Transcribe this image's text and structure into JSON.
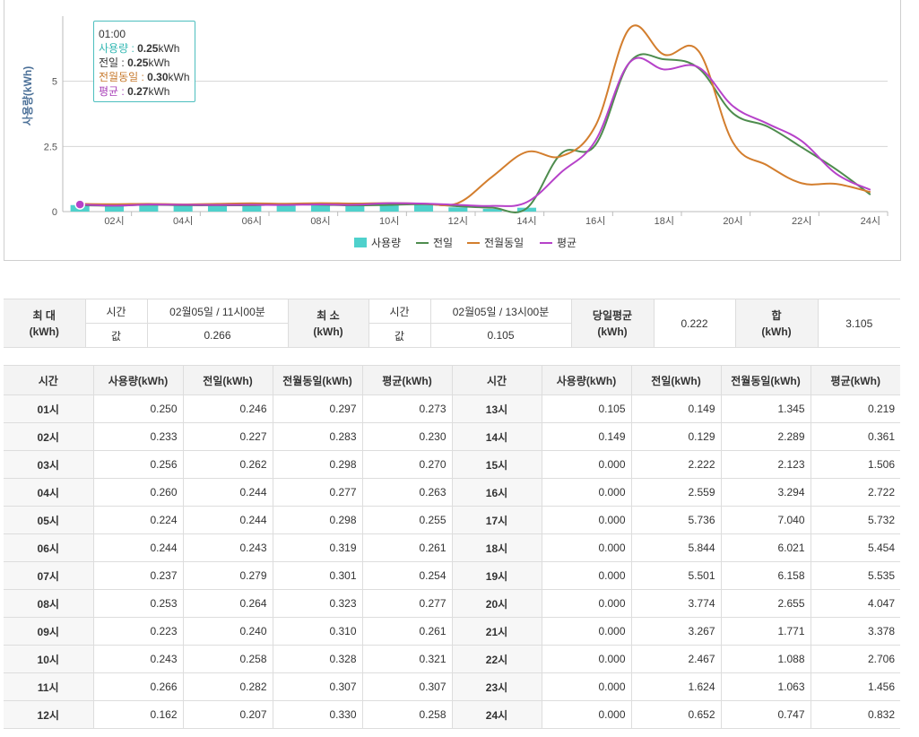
{
  "chart_data": {
    "type": "line",
    "ylabel": "사용량(kWh)",
    "ylim": [
      0,
      7.5
    ],
    "yticks": [
      "0",
      "2.5",
      "5"
    ],
    "ytick_values": [
      0,
      2.5,
      5
    ],
    "x": [
      1,
      2,
      3,
      4,
      5,
      6,
      7,
      8,
      9,
      10,
      11,
      12,
      13,
      14,
      15,
      16,
      17,
      18,
      19,
      20,
      21,
      22,
      23,
      24
    ],
    "xtick_labels": [
      "02시",
      "04시",
      "06시",
      "08시",
      "10시",
      "12시",
      "14시",
      "16시",
      "18시",
      "20시",
      "22시",
      "24시"
    ],
    "xtick_values": [
      2,
      4,
      6,
      8,
      10,
      12,
      14,
      16,
      18,
      20,
      22,
      24
    ],
    "series": [
      {
        "name": "사용량",
        "type": "bar",
        "color": "#4fd1cc",
        "values": [
          0.25,
          0.233,
          0.256,
          0.26,
          0.224,
          0.244,
          0.237,
          0.253,
          0.223,
          0.243,
          0.266,
          0.162,
          0.105,
          0.149,
          0,
          0,
          0,
          0,
          0,
          0,
          0,
          0,
          0,
          0
        ]
      },
      {
        "name": "전일",
        "type": "line",
        "color": "#4e8c4e",
        "values": [
          0.246,
          0.227,
          0.262,
          0.244,
          0.244,
          0.243,
          0.279,
          0.264,
          0.24,
          0.258,
          0.282,
          0.207,
          0.149,
          0.129,
          2.222,
          2.559,
          5.736,
          5.844,
          5.501,
          3.774,
          3.267,
          2.467,
          1.624,
          0.652
        ]
      },
      {
        "name": "전월동일",
        "type": "line",
        "color": "#d37e2e",
        "values": [
          0.297,
          0.283,
          0.298,
          0.277,
          0.298,
          0.319,
          0.301,
          0.323,
          0.31,
          0.328,
          0.307,
          0.33,
          1.345,
          2.289,
          2.123,
          3.294,
          7.04,
          6.021,
          6.158,
          2.655,
          1.771,
          1.088,
          1.063,
          0.747
        ]
      },
      {
        "name": "평균",
        "type": "line",
        "color": "#b642c9",
        "values": [
          0.273,
          0.23,
          0.27,
          0.263,
          0.255,
          0.261,
          0.254,
          0.277,
          0.261,
          0.321,
          0.307,
          0.258,
          0.219,
          0.361,
          1.506,
          2.722,
          5.732,
          5.454,
          5.535,
          4.047,
          3.378,
          2.706,
          1.456,
          0.832
        ]
      }
    ],
    "legend": "bottom",
    "grid": true
  },
  "tooltip": {
    "time": "01:00",
    "rows": [
      {
        "label": "사용량 : ",
        "value": "0.25",
        "unit": "kWh",
        "color": "#35b8b3"
      },
      {
        "label": "전일 : ",
        "value": "0.25",
        "unit": "kWh",
        "color": "#333333"
      },
      {
        "label": "전월동일 : ",
        "value": "0.30",
        "unit": "kWh",
        "color": "#c77a2e"
      },
      {
        "label": "평균 : ",
        "value": "0.27",
        "unit": "kWh",
        "color": "#a83fb8"
      }
    ]
  },
  "summary": {
    "max_label": "최 대\n(kWh)",
    "min_label": "최 소\n(kWh)",
    "avg_label": "당일평균\n(kWh)",
    "sum_label": "합\n(kWh)",
    "time_label": "시간",
    "value_label": "값",
    "max_time": "02월05일 / 11시00분",
    "max_value": "0.266",
    "min_time": "02월05일 / 13시00분",
    "min_value": "0.105",
    "avg_value": "0.222",
    "sum_value": "3.105"
  },
  "detail": {
    "headers": [
      "시간",
      "사용량(kWh)",
      "전일(kWh)",
      "전월동일(kWh)",
      "평균(kWh)",
      "시간",
      "사용량(kWh)",
      "전일(kWh)",
      "전월동일(kWh)",
      "평균(kWh)"
    ],
    "rows": [
      [
        "01시",
        "0.250",
        "0.246",
        "0.297",
        "0.273",
        "13시",
        "0.105",
        "0.149",
        "1.345",
        "0.219"
      ],
      [
        "02시",
        "0.233",
        "0.227",
        "0.283",
        "0.230",
        "14시",
        "0.149",
        "0.129",
        "2.289",
        "0.361"
      ],
      [
        "03시",
        "0.256",
        "0.262",
        "0.298",
        "0.270",
        "15시",
        "0.000",
        "2.222",
        "2.123",
        "1.506"
      ],
      [
        "04시",
        "0.260",
        "0.244",
        "0.277",
        "0.263",
        "16시",
        "0.000",
        "2.559",
        "3.294",
        "2.722"
      ],
      [
        "05시",
        "0.224",
        "0.244",
        "0.298",
        "0.255",
        "17시",
        "0.000",
        "5.736",
        "7.040",
        "5.732"
      ],
      [
        "06시",
        "0.244",
        "0.243",
        "0.319",
        "0.261",
        "18시",
        "0.000",
        "5.844",
        "6.021",
        "5.454"
      ],
      [
        "07시",
        "0.237",
        "0.279",
        "0.301",
        "0.254",
        "19시",
        "0.000",
        "5.501",
        "6.158",
        "5.535"
      ],
      [
        "08시",
        "0.253",
        "0.264",
        "0.323",
        "0.277",
        "20시",
        "0.000",
        "3.774",
        "2.655",
        "4.047"
      ],
      [
        "09시",
        "0.223",
        "0.240",
        "0.310",
        "0.261",
        "21시",
        "0.000",
        "3.267",
        "1.771",
        "3.378"
      ],
      [
        "10시",
        "0.243",
        "0.258",
        "0.328",
        "0.321",
        "22시",
        "0.000",
        "2.467",
        "1.088",
        "2.706"
      ],
      [
        "11시",
        "0.266",
        "0.282",
        "0.307",
        "0.307",
        "23시",
        "0.000",
        "1.624",
        "1.063",
        "1.456"
      ],
      [
        "12시",
        "0.162",
        "0.207",
        "0.330",
        "0.258",
        "24시",
        "0.000",
        "0.652",
        "0.747",
        "0.832"
      ]
    ]
  }
}
